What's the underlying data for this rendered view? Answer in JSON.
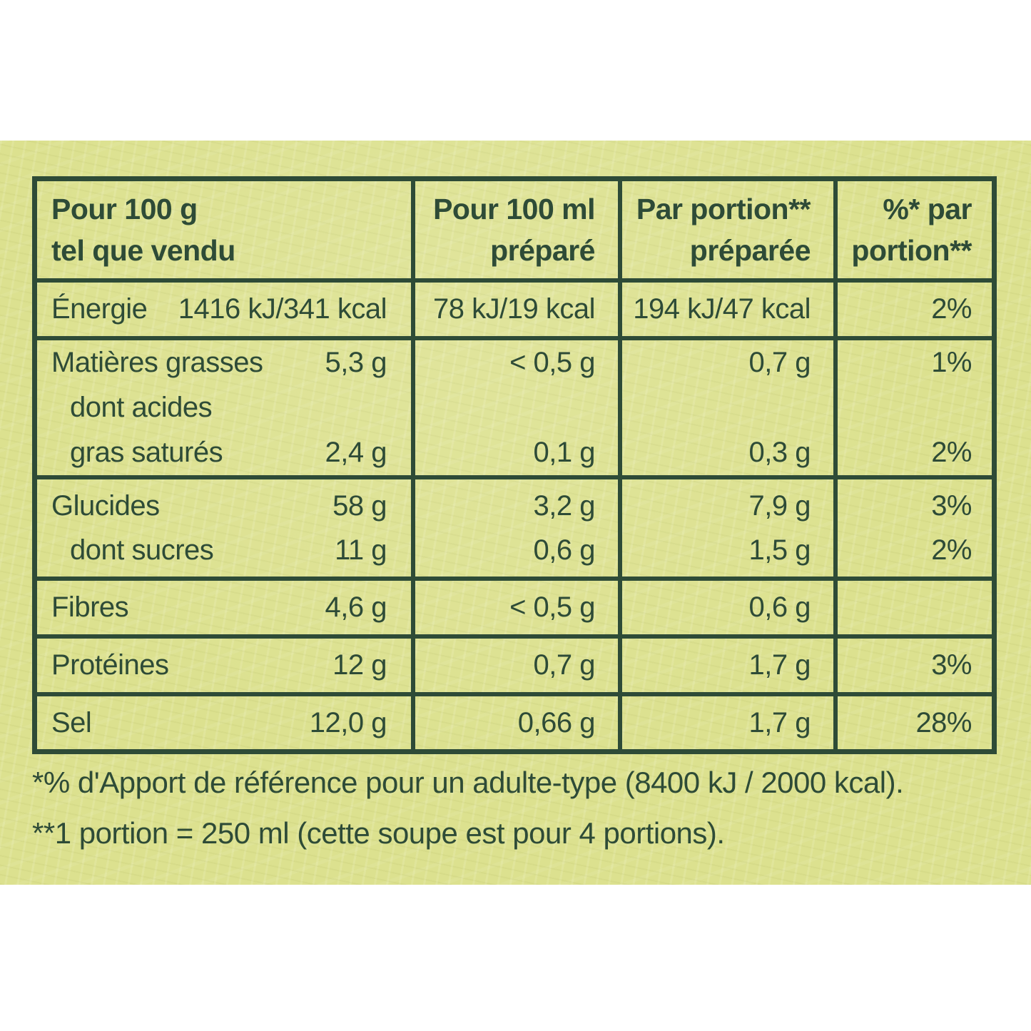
{
  "colors": {
    "band_background": "#dce18f",
    "ink_green": "#2e4b37",
    "page_background": "#ffffff"
  },
  "table": {
    "header": {
      "col1": {
        "line1": "Pour 100 g",
        "line2": "tel que vendu"
      },
      "col2": {
        "line1": "Pour 100 ml",
        "line2": "préparé"
      },
      "col3": {
        "line1": "Par portion**",
        "line2": "préparée"
      },
      "col4": {
        "line1": "%* par",
        "line2": "portion**"
      }
    },
    "rows": [
      {
        "lines": [
          {
            "label": "Énergie",
            "per100g": "1416 kJ/341 kcal",
            "per100ml": "78 kJ/19 kcal",
            "portion": "194 kJ/47 kcal",
            "pct": "2%"
          }
        ]
      },
      {
        "lines": [
          {
            "label": "Matières grasses",
            "per100g": "5,3 g",
            "per100ml": "< 0,5 g",
            "portion": "0,7 g",
            "pct": "1%"
          },
          {
            "label": "dont acides",
            "per100g": "",
            "per100ml": "",
            "portion": "",
            "pct": ""
          },
          {
            "label": "gras saturés",
            "per100g": "2,4 g",
            "per100ml": "0,1 g",
            "portion": "0,3 g",
            "pct": "2%"
          }
        ]
      },
      {
        "lines": [
          {
            "label": "Glucides",
            "per100g": "58 g",
            "per100ml": "3,2 g",
            "portion": "7,9 g",
            "pct": "3%"
          },
          {
            "label": "dont sucres",
            "per100g": "11 g",
            "per100ml": "0,6 g",
            "portion": "1,5 g",
            "pct": "2%"
          }
        ]
      },
      {
        "lines": [
          {
            "label": "Fibres",
            "per100g": "4,6 g",
            "per100ml": "< 0,5 g",
            "portion": "0,6 g",
            "pct": ""
          }
        ]
      },
      {
        "lines": [
          {
            "label": "Protéines",
            "per100g": "12 g",
            "per100ml": "0,7 g",
            "portion": "1,7 g",
            "pct": "3%"
          }
        ]
      },
      {
        "lines": [
          {
            "label": "Sel",
            "per100g": "12,0 g",
            "per100ml": "0,66 g",
            "portion": "1,7 g",
            "pct": "28%"
          }
        ]
      }
    ]
  },
  "footnotes": [
    "*% d'Apport de référence pour un adulte-type (8400 kJ / 2000 kcal).",
    "**1 portion = 250 ml (cette soupe est pour 4 portions)."
  ]
}
